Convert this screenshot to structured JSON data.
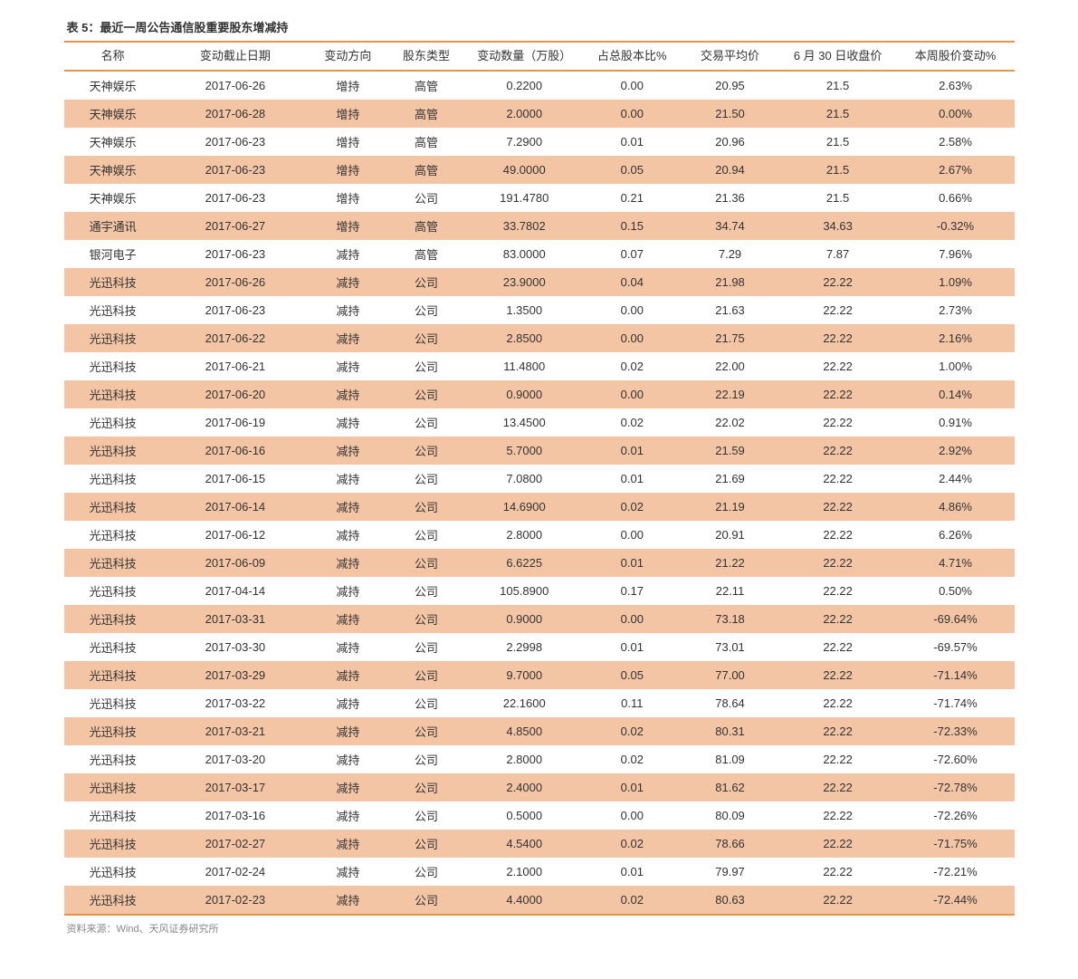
{
  "table": {
    "title": "表 5：最近一周公告通信股重要股东增减持",
    "source": "资料来源：Wind、天风证券研究所",
    "colors": {
      "border": "#e8934a",
      "row_even_bg": "#f4c5a5",
      "row_odd_bg": "#ffffff",
      "text": "#333333",
      "source_text": "#888888"
    },
    "columns": [
      {
        "key": "name",
        "label": "名称"
      },
      {
        "key": "date",
        "label": "变动截止日期"
      },
      {
        "key": "direction",
        "label": "变动方向"
      },
      {
        "key": "shareholder_type",
        "label": "股东类型"
      },
      {
        "key": "quantity",
        "label": "变动数量（万股）"
      },
      {
        "key": "pct_of_total",
        "label": "占总股本比%"
      },
      {
        "key": "avg_price",
        "label": "交易平均价"
      },
      {
        "key": "close_price",
        "label": "6 月 30 日收盘价"
      },
      {
        "key": "week_change",
        "label": "本周股价变动%"
      }
    ],
    "rows": [
      [
        "天神娱乐",
        "2017-06-26",
        "增持",
        "高管",
        "0.2200",
        "0.00",
        "20.95",
        "21.5",
        "2.63%"
      ],
      [
        "天神娱乐",
        "2017-06-28",
        "增持",
        "高管",
        "2.0000",
        "0.00",
        "21.50",
        "21.5",
        "0.00%"
      ],
      [
        "天神娱乐",
        "2017-06-23",
        "增持",
        "高管",
        "7.2900",
        "0.01",
        "20.96",
        "21.5",
        "2.58%"
      ],
      [
        "天神娱乐",
        "2017-06-23",
        "增持",
        "高管",
        "49.0000",
        "0.05",
        "20.94",
        "21.5",
        "2.67%"
      ],
      [
        "天神娱乐",
        "2017-06-23",
        "增持",
        "公司",
        "191.4780",
        "0.21",
        "21.36",
        "21.5",
        "0.66%"
      ],
      [
        "通宇通讯",
        "2017-06-27",
        "增持",
        "高管",
        "33.7802",
        "0.15",
        "34.74",
        "34.63",
        "-0.32%"
      ],
      [
        "银河电子",
        "2017-06-23",
        "减持",
        "高管",
        "83.0000",
        "0.07",
        "7.29",
        "7.87",
        "7.96%"
      ],
      [
        "光迅科技",
        "2017-06-26",
        "减持",
        "公司",
        "23.9000",
        "0.04",
        "21.98",
        "22.22",
        "1.09%"
      ],
      [
        "光迅科技",
        "2017-06-23",
        "减持",
        "公司",
        "1.3500",
        "0.00",
        "21.63",
        "22.22",
        "2.73%"
      ],
      [
        "光迅科技",
        "2017-06-22",
        "减持",
        "公司",
        "2.8500",
        "0.00",
        "21.75",
        "22.22",
        "2.16%"
      ],
      [
        "光迅科技",
        "2017-06-21",
        "减持",
        "公司",
        "11.4800",
        "0.02",
        "22.00",
        "22.22",
        "1.00%"
      ],
      [
        "光迅科技",
        "2017-06-20",
        "减持",
        "公司",
        "0.9000",
        "0.00",
        "22.19",
        "22.22",
        "0.14%"
      ],
      [
        "光迅科技",
        "2017-06-19",
        "减持",
        "公司",
        "13.4500",
        "0.02",
        "22.02",
        "22.22",
        "0.91%"
      ],
      [
        "光迅科技",
        "2017-06-16",
        "减持",
        "公司",
        "5.7000",
        "0.01",
        "21.59",
        "22.22",
        "2.92%"
      ],
      [
        "光迅科技",
        "2017-06-15",
        "减持",
        "公司",
        "7.0800",
        "0.01",
        "21.69",
        "22.22",
        "2.44%"
      ],
      [
        "光迅科技",
        "2017-06-14",
        "减持",
        "公司",
        "14.6900",
        "0.02",
        "21.19",
        "22.22",
        "4.86%"
      ],
      [
        "光迅科技",
        "2017-06-12",
        "减持",
        "公司",
        "2.8000",
        "0.00",
        "20.91",
        "22.22",
        "6.26%"
      ],
      [
        "光迅科技",
        "2017-06-09",
        "减持",
        "公司",
        "6.6225",
        "0.01",
        "21.22",
        "22.22",
        "4.71%"
      ],
      [
        "光迅科技",
        "2017-04-14",
        "减持",
        "公司",
        "105.8900",
        "0.17",
        "22.11",
        "22.22",
        "0.50%"
      ],
      [
        "光迅科技",
        "2017-03-31",
        "减持",
        "公司",
        "0.9000",
        "0.00",
        "73.18",
        "22.22",
        "-69.64%"
      ],
      [
        "光迅科技",
        "2017-03-30",
        "减持",
        "公司",
        "2.2998",
        "0.01",
        "73.01",
        "22.22",
        "-69.57%"
      ],
      [
        "光迅科技",
        "2017-03-29",
        "减持",
        "公司",
        "9.7000",
        "0.05",
        "77.00",
        "22.22",
        "-71.14%"
      ],
      [
        "光迅科技",
        "2017-03-22",
        "减持",
        "公司",
        "22.1600",
        "0.11",
        "78.64",
        "22.22",
        "-71.74%"
      ],
      [
        "光迅科技",
        "2017-03-21",
        "减持",
        "公司",
        "4.8500",
        "0.02",
        "80.31",
        "22.22",
        "-72.33%"
      ],
      [
        "光迅科技",
        "2017-03-20",
        "减持",
        "公司",
        "2.8000",
        "0.02",
        "81.09",
        "22.22",
        "-72.60%"
      ],
      [
        "光迅科技",
        "2017-03-17",
        "减持",
        "公司",
        "2.4000",
        "0.01",
        "81.62",
        "22.22",
        "-72.78%"
      ],
      [
        "光迅科技",
        "2017-03-16",
        "减持",
        "公司",
        "0.5000",
        "0.00",
        "80.09",
        "22.22",
        "-72.26%"
      ],
      [
        "光迅科技",
        "2017-02-27",
        "减持",
        "公司",
        "4.5400",
        "0.02",
        "78.66",
        "22.22",
        "-71.75%"
      ],
      [
        "光迅科技",
        "2017-02-24",
        "减持",
        "公司",
        "2.1000",
        "0.01",
        "79.97",
        "22.22",
        "-72.21%"
      ],
      [
        "光迅科技",
        "2017-02-23",
        "减持",
        "公司",
        "4.4000",
        "0.02",
        "80.63",
        "22.22",
        "-72.44%"
      ]
    ]
  }
}
